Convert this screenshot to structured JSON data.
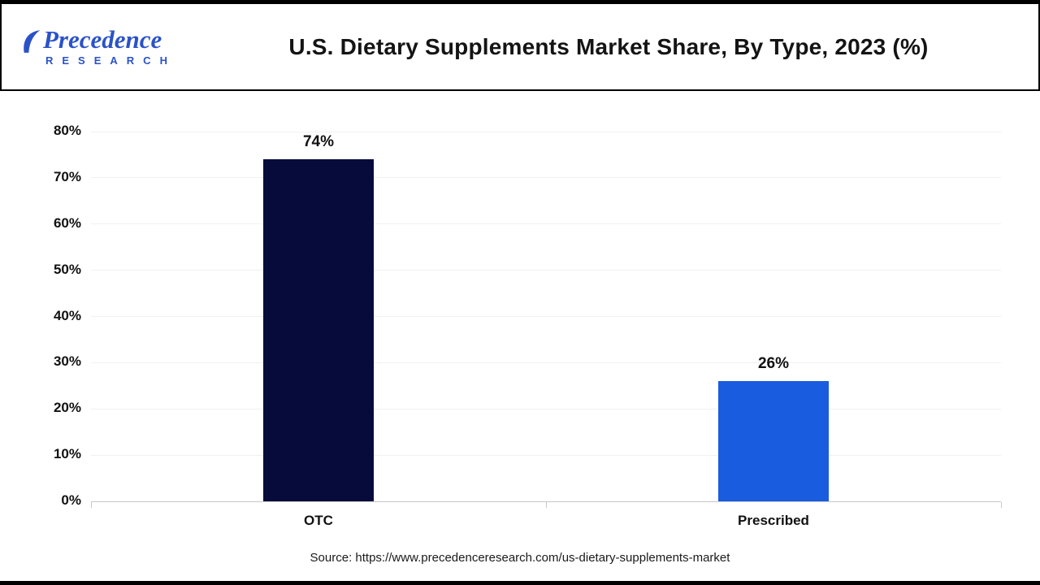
{
  "logo": {
    "name": "Precedence",
    "subtitle": "RESEARCH",
    "color": "#2a52c8"
  },
  "source": "Source: https://www.precedenceresearch.com/us-dietary-supplements-market",
  "chart_data": {
    "type": "bar",
    "title": "U.S. Dietary Supplements Market Share, By Type, 2023 (%)",
    "categories": [
      "OTC",
      "Prescribed"
    ],
    "values": [
      74,
      26
    ],
    "value_labels": [
      "74%",
      "26%"
    ],
    "bar_colors": [
      "#070B3B",
      "#1A5CE0"
    ],
    "xlabel": "",
    "ylabel": "",
    "ylim": [
      0,
      80
    ],
    "ytick_step": 10,
    "ytick_labels": [
      "0%",
      "10%",
      "20%",
      "30%",
      "40%",
      "50%",
      "60%",
      "70%",
      "80%"
    ],
    "grid": true,
    "legend": "none"
  }
}
